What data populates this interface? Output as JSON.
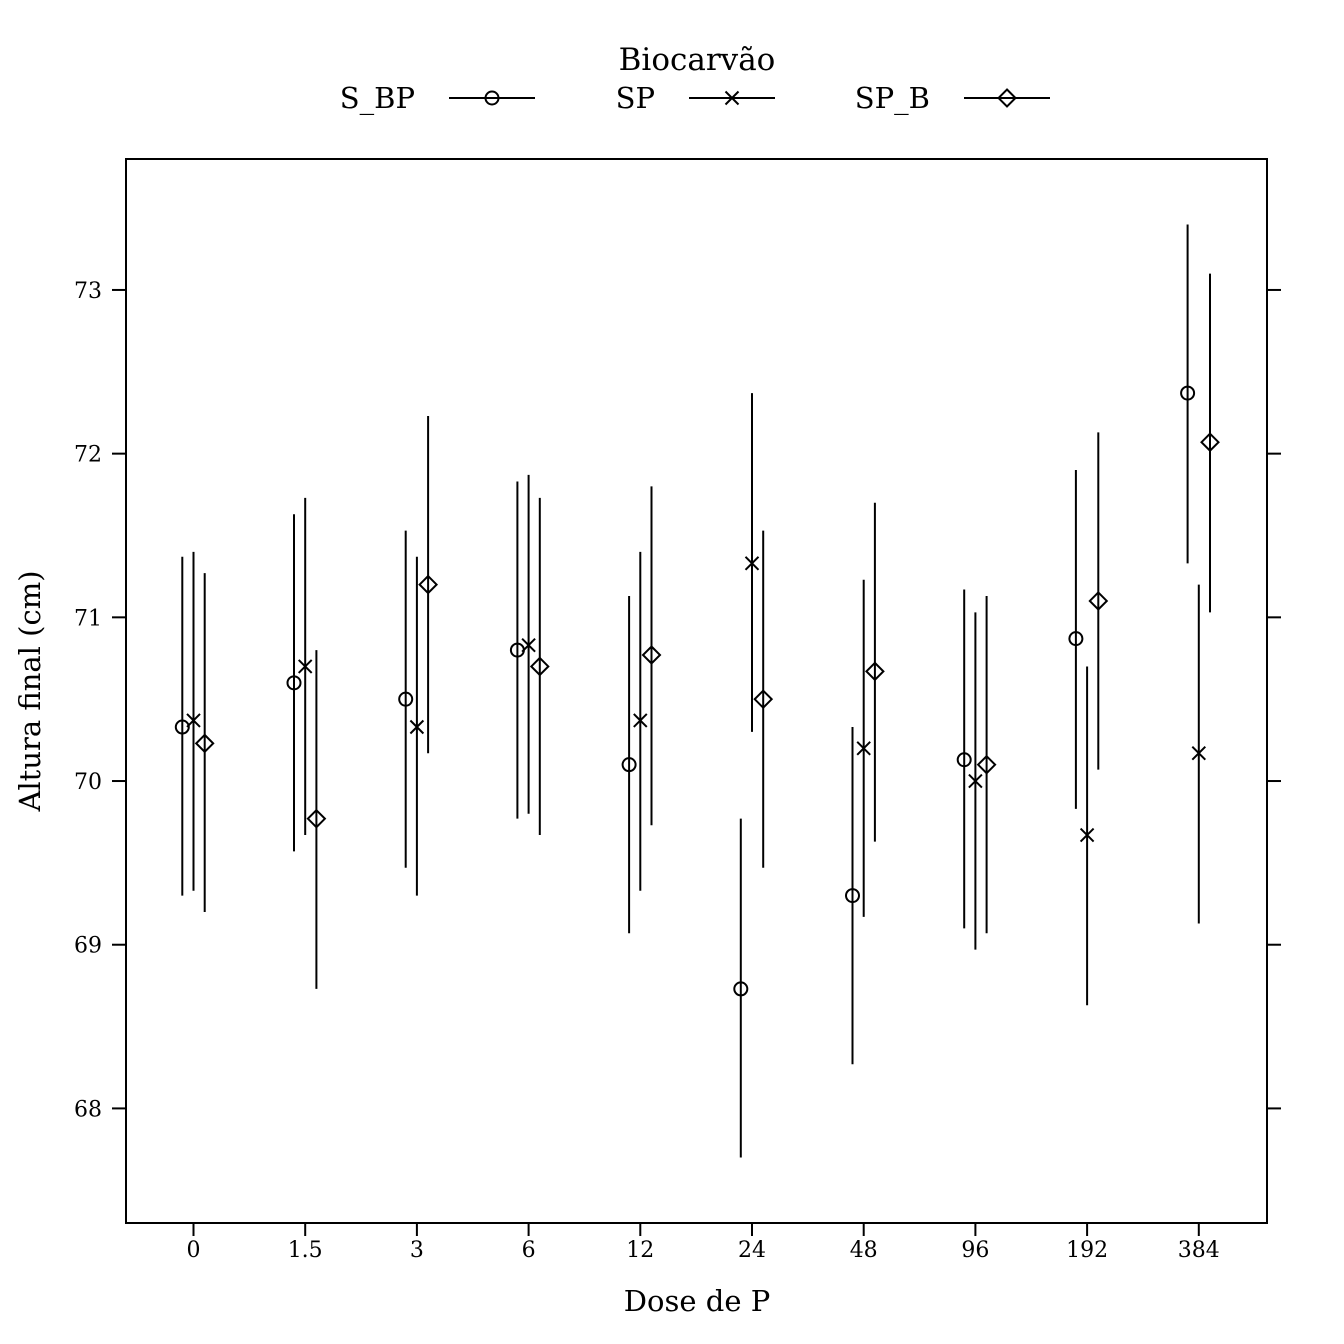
{
  "chart_data": {
    "type": "scatter",
    "title": "",
    "xlabel": "Dose de P",
    "ylabel": "Altura final (cm)",
    "categories": [
      "0",
      "1.5",
      "3",
      "6",
      "12",
      "24",
      "48",
      "96",
      "192",
      "384"
    ],
    "ylim": [
      67.3,
      73.8
    ],
    "yticks": [
      68,
      69,
      70,
      71,
      72,
      73
    ],
    "grid": false,
    "legend": {
      "title": "Biocarvão",
      "placement": "top"
    },
    "series": [
      {
        "name": "S_BP",
        "marker": "circle",
        "values": [
          70.33,
          70.6,
          70.5,
          70.8,
          70.1,
          68.73,
          69.3,
          70.13,
          70.87,
          72.37
        ],
        "lower": [
          69.3,
          69.57,
          69.47,
          69.77,
          69.07,
          67.7,
          68.27,
          69.1,
          69.83,
          71.33
        ],
        "upper": [
          71.37,
          71.63,
          71.53,
          71.83,
          71.13,
          69.77,
          70.33,
          71.17,
          71.9,
          73.4
        ]
      },
      {
        "name": "SP",
        "marker": "cross",
        "values": [
          70.37,
          70.7,
          70.33,
          70.83,
          70.37,
          71.33,
          70.2,
          70.0,
          69.67,
          70.17
        ],
        "lower": [
          69.33,
          69.67,
          69.3,
          69.8,
          69.33,
          70.3,
          69.17,
          68.97,
          68.63,
          69.13
        ],
        "upper": [
          71.4,
          71.73,
          71.37,
          71.87,
          71.4,
          72.37,
          71.23,
          71.03,
          70.7,
          71.2
        ]
      },
      {
        "name": "SP_B",
        "marker": "diamond",
        "values": [
          70.23,
          69.77,
          71.2,
          70.7,
          70.77,
          70.5,
          70.67,
          70.1,
          71.1,
          72.07
        ],
        "lower": [
          69.2,
          68.73,
          70.17,
          69.67,
          69.73,
          69.47,
          69.63,
          69.07,
          70.07,
          71.03
        ],
        "upper": [
          71.27,
          70.8,
          72.23,
          71.73,
          71.8,
          71.53,
          71.7,
          71.13,
          72.13,
          73.1
        ]
      }
    ]
  }
}
